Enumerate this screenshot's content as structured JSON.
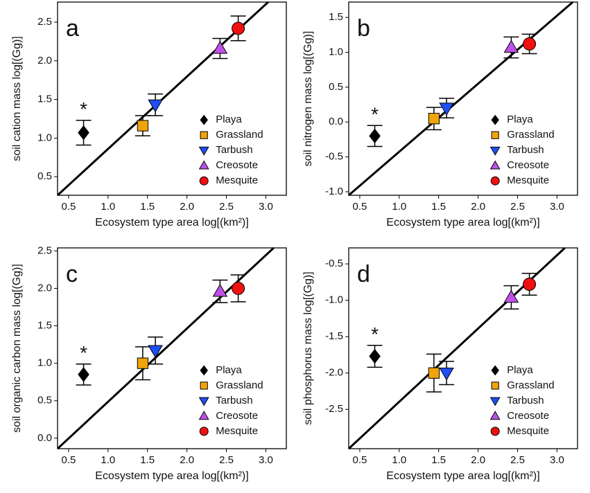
{
  "chart_data": [
    {
      "type": "scatter",
      "panel_label": "a",
      "annotation": "*",
      "xlabel": "Ecosystem type area log[(km²)]",
      "ylabel": "soil cation mass log[(Gg)]",
      "xlim": [
        0.36,
        3.26
      ],
      "ylim": [
        0.26,
        2.76
      ],
      "xticks": [
        0.5,
        {
          "value": 1,
          "label": "1.0"
        },
        1.5,
        {
          "value": 2,
          "label": "2.0"
        },
        2.5,
        {
          "value": 3,
          "label": "3.0"
        }
      ],
      "yticks": [
        0.5,
        {
          "value": 1,
          "label": "1.0"
        },
        1.5,
        {
          "value": 2,
          "label": "2.0"
        },
        2.5
      ],
      "fit_line": {
        "x": [
          0.36,
          3.03
        ],
        "y": [
          0.26,
          2.76
        ]
      },
      "series": [
        {
          "name": "Playa",
          "color": "#000000",
          "marker": "diamond",
          "x": [
            0.69
          ],
          "values": [
            1.07
          ],
          "errors": [
            0.16
          ]
        },
        {
          "name": "Grassland",
          "color": "#f0a30a",
          "marker": "square",
          "x": [
            1.44
          ],
          "values": [
            1.16
          ],
          "errors": [
            0.13
          ]
        },
        {
          "name": "Tarbush",
          "color": "#1f4ef5",
          "marker": "triangle-down",
          "x": [
            1.6
          ],
          "values": [
            1.43
          ],
          "errors": [
            0.14
          ]
        },
        {
          "name": "Creosote",
          "color": "#c050e8",
          "marker": "triangle-up",
          "x": [
            2.42
          ],
          "values": [
            2.16
          ],
          "errors": [
            0.13
          ]
        },
        {
          "name": "Mesquite",
          "color": "#f01010",
          "marker": "circle",
          "x": [
            2.65
          ],
          "values": [
            2.42
          ],
          "errors": [
            0.16
          ]
        }
      ]
    },
    {
      "type": "scatter",
      "panel_label": "b",
      "annotation": "*",
      "xlabel": "Ecosystem type area log[(km²)]",
      "ylabel": "soil nitrogen mass log[(Gg)]",
      "xlim": [
        0.36,
        3.26
      ],
      "ylim": [
        -1.05,
        1.72
      ],
      "xticks": [
        0.5,
        {
          "value": 1,
          "label": "1.0"
        },
        1.5,
        {
          "value": 2,
          "label": "2.0"
        },
        2.5,
        {
          "value": 3,
          "label": "3.0"
        }
      ],
      "yticks": [
        {
          "value": -1,
          "label": "-1.0"
        },
        -0.5,
        {
          "value": 0,
          "label": "0.0"
        },
        0.5,
        {
          "value": 1,
          "label": "1.0"
        },
        1.5
      ],
      "fit_line": {
        "x": [
          0.36,
          3.2
        ],
        "y": [
          -1.05,
          1.72
        ]
      },
      "series": [
        {
          "name": "Playa",
          "color": "#000000",
          "marker": "diamond",
          "x": [
            0.69
          ],
          "values": [
            -0.2
          ],
          "errors": [
            0.15
          ]
        },
        {
          "name": "Grassland",
          "color": "#f0a30a",
          "marker": "square",
          "x": [
            1.44
          ],
          "values": [
            0.05
          ],
          "errors": [
            0.16
          ]
        },
        {
          "name": "Tarbush",
          "color": "#1f4ef5",
          "marker": "triangle-down",
          "x": [
            1.6
          ],
          "values": [
            0.2
          ],
          "errors": [
            0.14
          ]
        },
        {
          "name": "Creosote",
          "color": "#c050e8",
          "marker": "triangle-up",
          "x": [
            2.42
          ],
          "values": [
            1.07
          ],
          "errors": [
            0.15
          ]
        },
        {
          "name": "Mesquite",
          "color": "#f01010",
          "marker": "circle",
          "x": [
            2.65
          ],
          "values": [
            1.12
          ],
          "errors": [
            0.14
          ]
        }
      ]
    },
    {
      "type": "scatter",
      "panel_label": "c",
      "annotation": "*",
      "xlabel": "Ecosystem type area log[(km²)]",
      "ylabel": "soil organic carbon mass log[(Gg)]",
      "xlim": [
        0.36,
        3.26
      ],
      "ylim": [
        -0.14,
        2.54
      ],
      "xticks": [
        0.5,
        {
          "value": 1,
          "label": "1.0"
        },
        1.5,
        {
          "value": 2,
          "label": "2.0"
        },
        2.5,
        {
          "value": 3,
          "label": "3.0"
        }
      ],
      "yticks": [
        {
          "value": 0,
          "label": "0.0"
        },
        0.5,
        {
          "value": 1,
          "label": "1.0"
        },
        1.5,
        {
          "value": 2,
          "label": "2.0"
        },
        2.5
      ],
      "fit_line": {
        "x": [
          0.36,
          3.1
        ],
        "y": [
          -0.14,
          2.54
        ]
      },
      "series": [
        {
          "name": "Playa",
          "color": "#000000",
          "marker": "diamond",
          "x": [
            0.69
          ],
          "values": [
            0.85
          ],
          "errors": [
            0.14
          ]
        },
        {
          "name": "Grassland",
          "color": "#f0a30a",
          "marker": "square",
          "x": [
            1.44
          ],
          "values": [
            1.0
          ],
          "errors": [
            0.22
          ]
        },
        {
          "name": "Tarbush",
          "color": "#1f4ef5",
          "marker": "triangle-down",
          "x": [
            1.6
          ],
          "values": [
            1.17
          ],
          "errors": [
            0.18
          ]
        },
        {
          "name": "Creosote",
          "color": "#c050e8",
          "marker": "triangle-up",
          "x": [
            2.42
          ],
          "values": [
            1.96
          ],
          "errors": [
            0.15
          ]
        },
        {
          "name": "Mesquite",
          "color": "#f01010",
          "marker": "circle",
          "x": [
            2.65
          ],
          "values": [
            2.0
          ],
          "errors": [
            0.18
          ]
        }
      ]
    },
    {
      "type": "scatter",
      "panel_label": "d",
      "annotation": "*",
      "xlabel": "Ecosystem type area log[(km²)]",
      "ylabel": "soil phosphorus mass log[(Gg)]",
      "xlim": [
        0.36,
        3.26
      ],
      "ylim": [
        -3.04,
        -0.28
      ],
      "xticks": [
        0.5,
        {
          "value": 1,
          "label": "1.0"
        },
        1.5,
        {
          "value": 2,
          "label": "2.0"
        },
        2.5,
        {
          "value": 3,
          "label": "3.0"
        }
      ],
      "yticks": [
        -2.5,
        {
          "value": -2,
          "label": "-2.0"
        },
        -1.5,
        {
          "value": -1,
          "label": "-1.0"
        },
        -0.5
      ],
      "fit_line": {
        "x": [
          0.36,
          3.1
        ],
        "y": [
          -3.04,
          -0.28
        ]
      },
      "series": [
        {
          "name": "Playa",
          "color": "#000000",
          "marker": "diamond",
          "x": [
            0.69
          ],
          "values": [
            -1.77
          ],
          "errors": [
            0.15
          ]
        },
        {
          "name": "Grassland",
          "color": "#f0a30a",
          "marker": "square",
          "x": [
            1.44
          ],
          "values": [
            -2.0
          ],
          "errors": [
            0.26
          ]
        },
        {
          "name": "Tarbush",
          "color": "#1f4ef5",
          "marker": "triangle-down",
          "x": [
            1.6
          ],
          "values": [
            -2.0
          ],
          "errors": [
            0.16
          ]
        },
        {
          "name": "Creosote",
          "color": "#c050e8",
          "marker": "triangle-up",
          "x": [
            2.42
          ],
          "values": [
            -0.96
          ],
          "errors": [
            0.16
          ]
        },
        {
          "name": "Mesquite",
          "color": "#f01010",
          "marker": "circle",
          "x": [
            2.65
          ],
          "values": [
            -0.78
          ],
          "errors": [
            0.15
          ]
        }
      ]
    }
  ]
}
